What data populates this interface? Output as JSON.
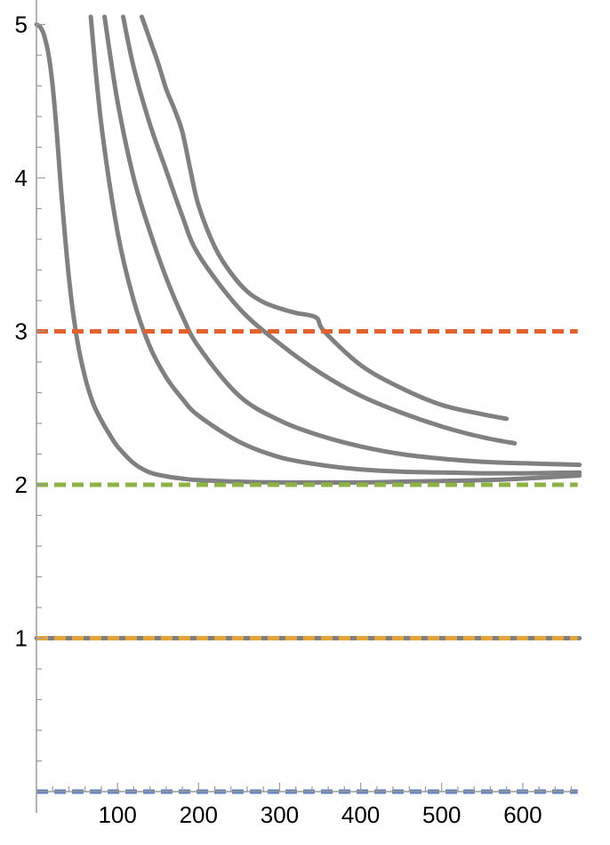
{
  "chart_data": {
    "type": "line",
    "title": "",
    "xlabel": "",
    "ylabel": "",
    "xlim": [
      0,
      670
    ],
    "ylim": [
      0,
      5.05
    ],
    "x_ticks": [
      100,
      200,
      300,
      400,
      500,
      600
    ],
    "x_tick_labels": [
      "100",
      "200",
      "300",
      "400",
      "500",
      "600"
    ],
    "y_ticks": [
      1,
      2,
      3,
      4,
      5
    ],
    "y_tick_labels": [
      "1",
      "2",
      "3",
      "4",
      "5"
    ],
    "x_minor_step": 20,
    "y_minor_step": 0.2,
    "grid": false,
    "legend": "none",
    "colors": {
      "curve": "#808080",
      "ref_3": "#E0622F",
      "ref_2": "#8DB246",
      "ref_1": "#E5A33B",
      "ref_0": "#5D7FBF",
      "axis": "#9a9a9a"
    },
    "reference_lines": [
      {
        "y": 3,
        "color": "#E0622F",
        "style": "dashed"
      },
      {
        "y": 2,
        "color": "#8DB246",
        "style": "dashed"
      },
      {
        "y": 1,
        "color": "#E5A33B",
        "style": "dashed"
      },
      {
        "y": 0,
        "color": "#5D7FBF",
        "style": "dashed"
      }
    ],
    "series": [
      {
        "x": [
          0,
          5,
          10,
          15,
          20,
          25,
          30,
          40,
          50,
          60,
          70,
          80,
          90,
          100,
          120,
          140,
          160,
          180,
          200,
          250,
          300,
          350,
          400,
          450,
          500,
          550,
          600,
          670
        ],
        "values": [
          5.0,
          4.98,
          4.92,
          4.8,
          4.6,
          4.3,
          3.95,
          3.35,
          2.95,
          2.7,
          2.53,
          2.42,
          2.33,
          2.25,
          2.14,
          2.08,
          2.055,
          2.04,
          2.03,
          2.02,
          2.015,
          2.015,
          2.015,
          2.02,
          2.025,
          2.03,
          2.04,
          2.06
        ]
      },
      {
        "x": [
          67,
          80,
          100,
          120,
          140,
          160,
          180,
          200,
          250,
          300,
          350,
          400,
          450,
          500,
          550,
          600,
          670
        ],
        "values": [
          5.05,
          4.35,
          3.65,
          3.2,
          2.9,
          2.7,
          2.56,
          2.45,
          2.28,
          2.18,
          2.13,
          2.1,
          2.085,
          2.08,
          2.075,
          2.075,
          2.08
        ]
      },
      {
        "x": [
          84,
          100,
          120,
          140,
          160,
          180,
          200,
          250,
          300,
          350,
          400,
          450,
          500,
          550,
          600,
          670
        ],
        "values": [
          5.05,
          4.5,
          4.0,
          3.65,
          3.35,
          3.1,
          2.9,
          2.58,
          2.42,
          2.32,
          2.25,
          2.2,
          2.17,
          2.15,
          2.14,
          2.13
        ]
      },
      {
        "x": [
          107,
          120,
          140,
          160,
          180,
          200,
          250,
          300,
          350,
          400,
          450,
          500,
          550,
          590
        ],
        "values": [
          5.05,
          4.72,
          4.35,
          4.05,
          3.75,
          3.5,
          3.15,
          2.92,
          2.73,
          2.58,
          2.47,
          2.38,
          2.31,
          2.27
        ]
      },
      {
        "x": [
          130,
          140,
          150,
          160,
          170,
          180,
          190,
          200,
          220,
          240,
          260,
          280,
          300,
          320,
          345,
          355,
          400,
          450,
          500,
          550,
          580
        ],
        "values": [
          5.05,
          4.9,
          4.75,
          4.58,
          4.45,
          4.3,
          4.05,
          3.82,
          3.55,
          3.38,
          3.26,
          3.19,
          3.15,
          3.12,
          3.09,
          3.0,
          2.78,
          2.63,
          2.52,
          2.46,
          2.43
        ]
      },
      {
        "x": [
          0,
          670
        ],
        "values": [
          1.0,
          1.0
        ]
      }
    ]
  }
}
